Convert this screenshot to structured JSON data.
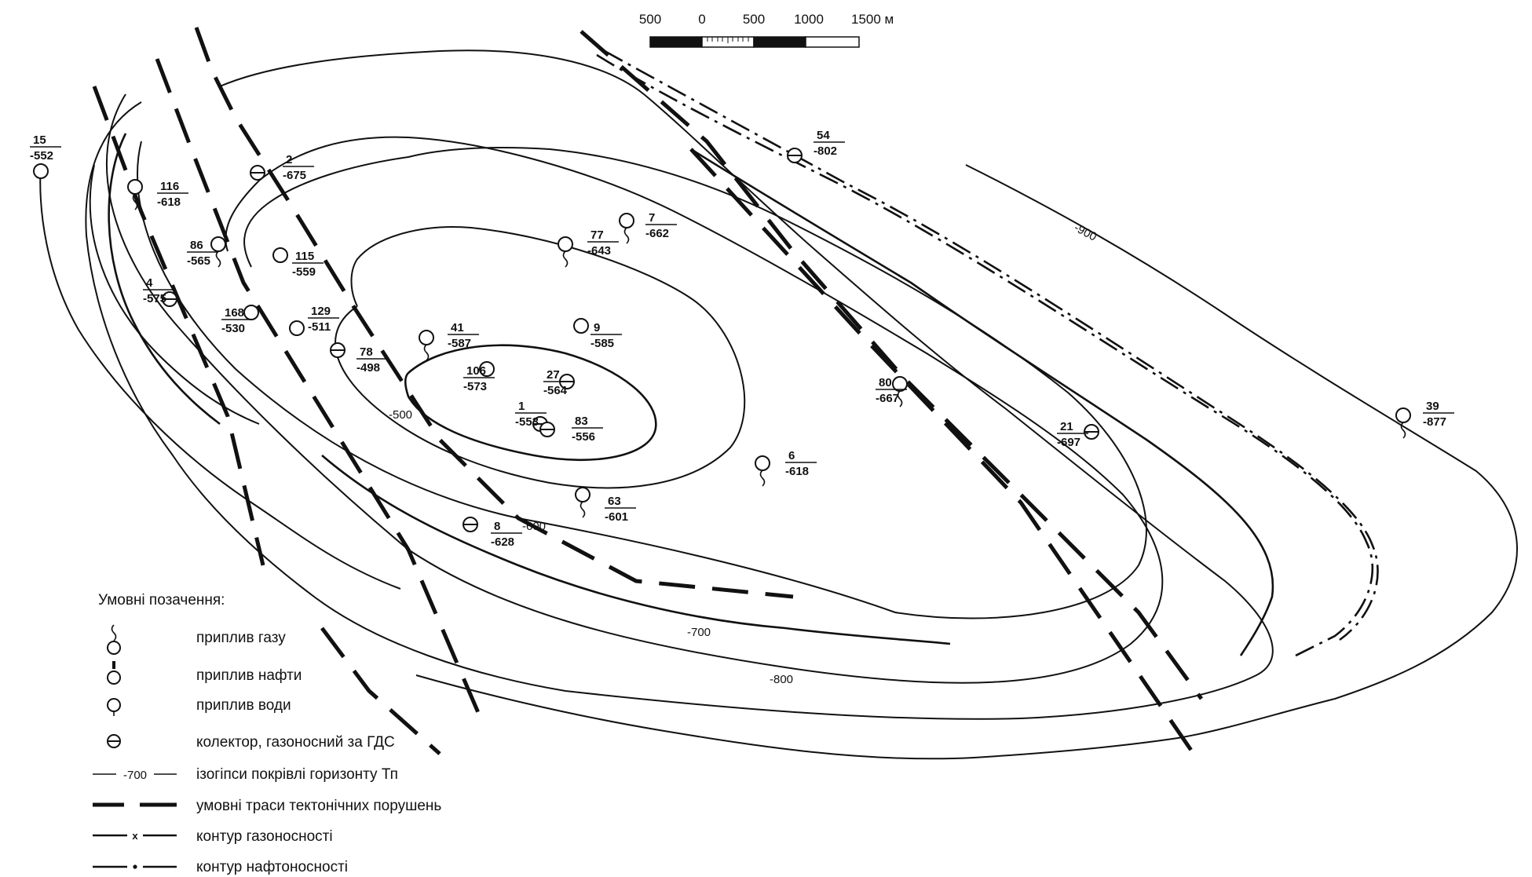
{
  "scale": {
    "labels": [
      "500",
      "0",
      "500",
      "1000",
      "1500 м"
    ]
  },
  "isolines": [
    {
      "label": "-900"
    },
    {
      "label": "-800"
    },
    {
      "label": "-700"
    },
    {
      "label": "-600"
    },
    {
      "label": "-500"
    }
  ],
  "wells": [
    {
      "num": "15",
      "elev": "-552",
      "type": "water"
    },
    {
      "num": "116",
      "elev": "-618",
      "type": "gas"
    },
    {
      "num": "2",
      "elev": "-675",
      "type": "gds"
    },
    {
      "num": "86",
      "elev": "-565",
      "type": "gas"
    },
    {
      "num": "115",
      "elev": "-559",
      "type": "water"
    },
    {
      "num": "4",
      "elev": "-575",
      "type": "gds"
    },
    {
      "num": "168",
      "elev": "-530",
      "type": "water"
    },
    {
      "num": "129",
      "elev": "-511",
      "type": "water"
    },
    {
      "num": "78",
      "elev": "-498",
      "type": "gds"
    },
    {
      "num": "41",
      "elev": "-587",
      "type": "gas"
    },
    {
      "num": "106",
      "elev": "-573",
      "type": "water"
    },
    {
      "num": "77",
      "elev": "-643",
      "type": "gas"
    },
    {
      "num": "7",
      "elev": "-662",
      "type": "gas"
    },
    {
      "num": "9",
      "elev": "-585",
      "type": "water"
    },
    {
      "num": "27",
      "elev": "-564",
      "type": "gds"
    },
    {
      "num": "1",
      "elev": "-553",
      "type": "gds"
    },
    {
      "num": "83",
      "elev": "-556",
      "type": "gds"
    },
    {
      "num": "63",
      "elev": "-601",
      "type": "gas"
    },
    {
      "num": "8",
      "elev": "-628",
      "type": "gds"
    },
    {
      "num": "6",
      "elev": "-618",
      "type": "gas"
    },
    {
      "num": "54",
      "elev": "-802",
      "type": "gds"
    },
    {
      "num": "80",
      "elev": "-667",
      "type": "gas"
    },
    {
      "num": "21",
      "elev": "-697",
      "type": "gds"
    },
    {
      "num": "39",
      "elev": "-877",
      "type": "gas"
    }
  ],
  "legend": {
    "title": "Умовні позачення:",
    "items": [
      {
        "label": "приплив газу",
        "symbol": "gas-inflow"
      },
      {
        "label": "приплив нафти",
        "symbol": "oil-inflow"
      },
      {
        "label": "приплив води",
        "symbol": "water-inflow"
      },
      {
        "label": "колектор, газоносний за ГДС",
        "symbol": "gds-collector"
      },
      {
        "label": "ізогіпси покрівлі горизонту Тп",
        "symbol": "isohypse",
        "sample": "-700"
      },
      {
        "label": "умовні траси тектонічних порушень",
        "symbol": "fault"
      },
      {
        "label": "контур газоносності",
        "symbol": "gas-contour"
      },
      {
        "label": "контур нафтоносності",
        "symbol": "oil-contour"
      }
    ]
  }
}
